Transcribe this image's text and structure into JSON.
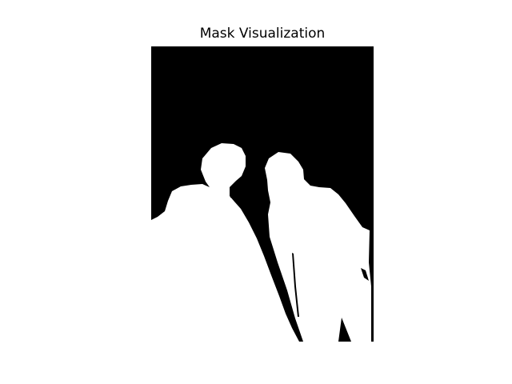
{
  "figure": {
    "title": "Mask Visualization"
  },
  "mask": {
    "background_color": "#000000",
    "foreground_color": "#ffffff"
  }
}
